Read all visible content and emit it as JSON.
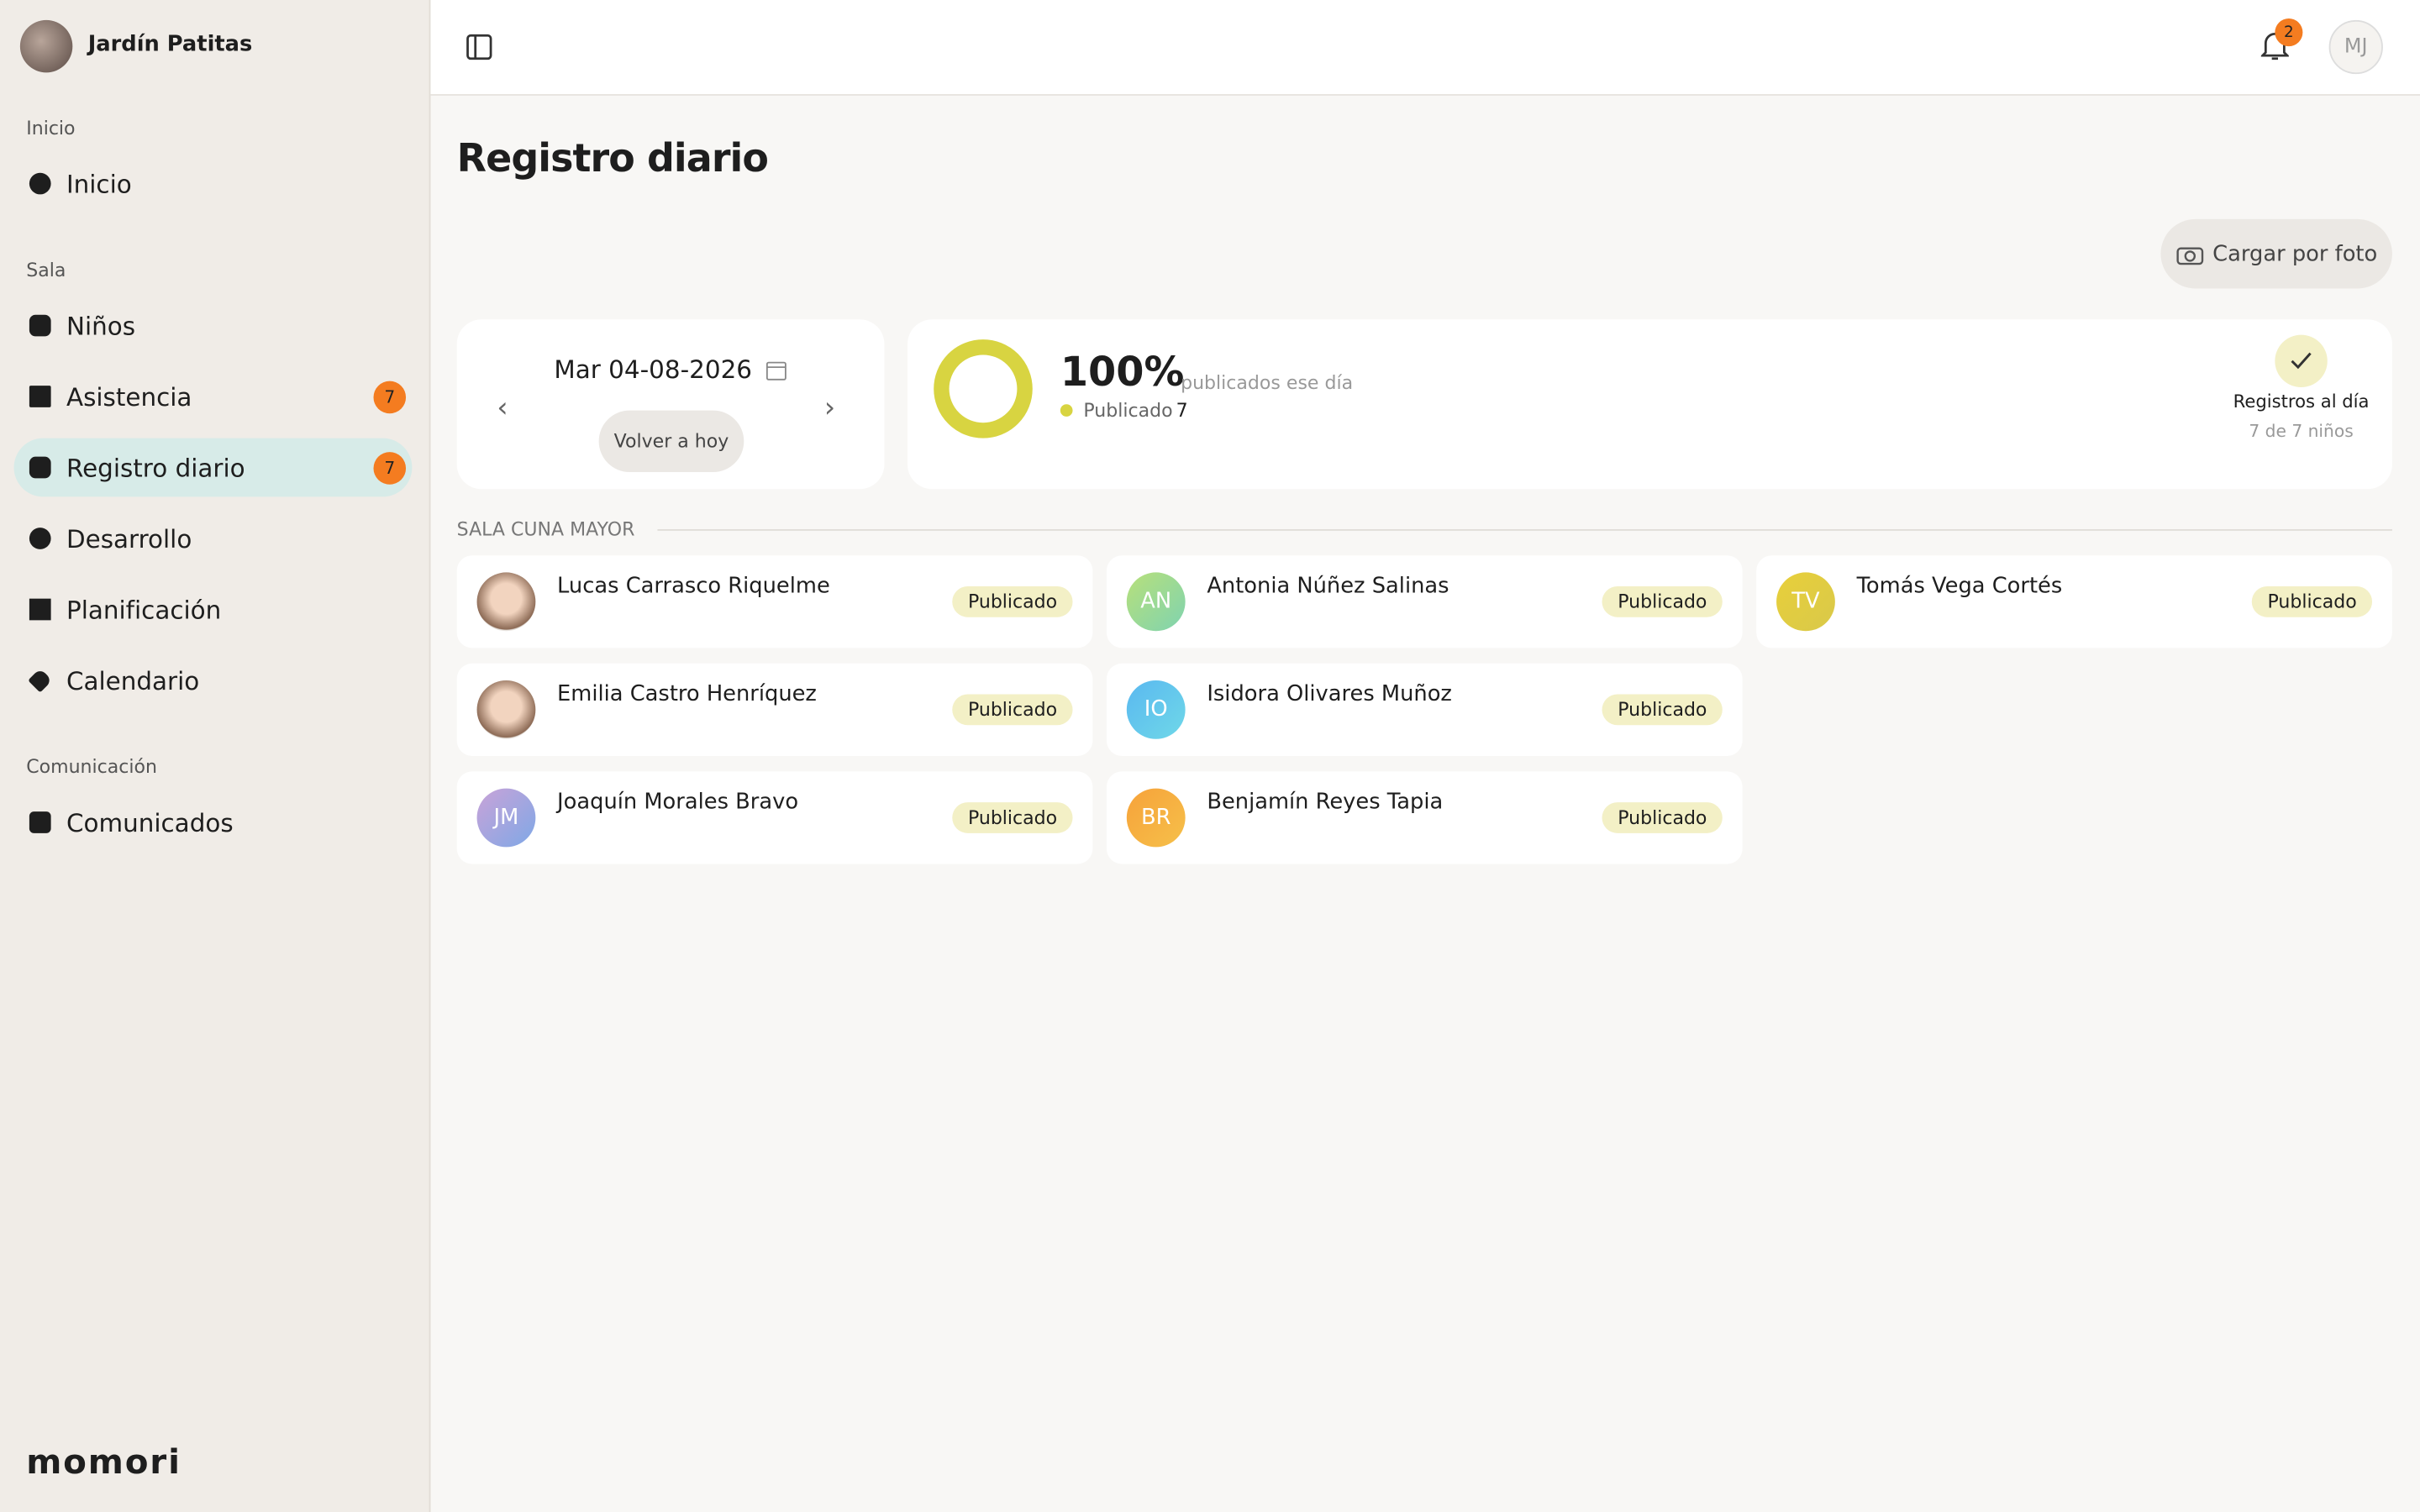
{
  "sidebar": {
    "school": "Jardín Patitas",
    "sections": [
      {
        "title": "Inicio",
        "items": [
          {
            "label": "Inicio"
          }
        ]
      },
      {
        "title": "Sala",
        "items": [
          {
            "label": "Niños"
          },
          {
            "label": "Asistencia",
            "badge": "7"
          },
          {
            "label": "Registro diario",
            "badge": "7"
          },
          {
            "label": "Desarrollo"
          },
          {
            "label": "Planificación"
          },
          {
            "label": "Calendario"
          }
        ]
      },
      {
        "title": "Comunicación",
        "items": [
          {
            "label": "Comunicados"
          }
        ]
      }
    ],
    "logo": "momori"
  },
  "header": {
    "notifications": "2",
    "user_initials": "MJ"
  },
  "page": {
    "title": "Registro diario",
    "upload_button": "Cargar por foto",
    "date": "Mar 04-08-2026",
    "today_button": "Volver a hoy",
    "summary": {
      "percent": "100%",
      "percent_caption": "publicados ese día",
      "legend_label": "Publicado",
      "legend_count": "7",
      "status_title": "Registros al día",
      "status_detail": "7 de 7 niños"
    },
    "group": {
      "title": "SALA CUNA MAYOR",
      "children": [
        {
          "name": "Lucas Carrasco Riquelme",
          "status": "Publicado"
        },
        {
          "name": "Antonia Núñez Salinas",
          "initials": "AN",
          "status": "Publicado"
        },
        {
          "name": "Tomás Vega Cortés",
          "initials": "TV",
          "status": "Publicado"
        },
        {
          "name": "Emilia Castro Henríquez",
          "status": "Publicado"
        },
        {
          "name": "Isidora Olivares Muñoz",
          "initials": "IO",
          "status": "Publicado"
        },
        {
          "name": "Joaquín Morales Bravo",
          "initials": "JM",
          "status": "Publicado"
        },
        {
          "name": "Benjamín Reyes Tapia",
          "initials": "BR",
          "status": "Publicado"
        }
      ]
    }
  }
}
